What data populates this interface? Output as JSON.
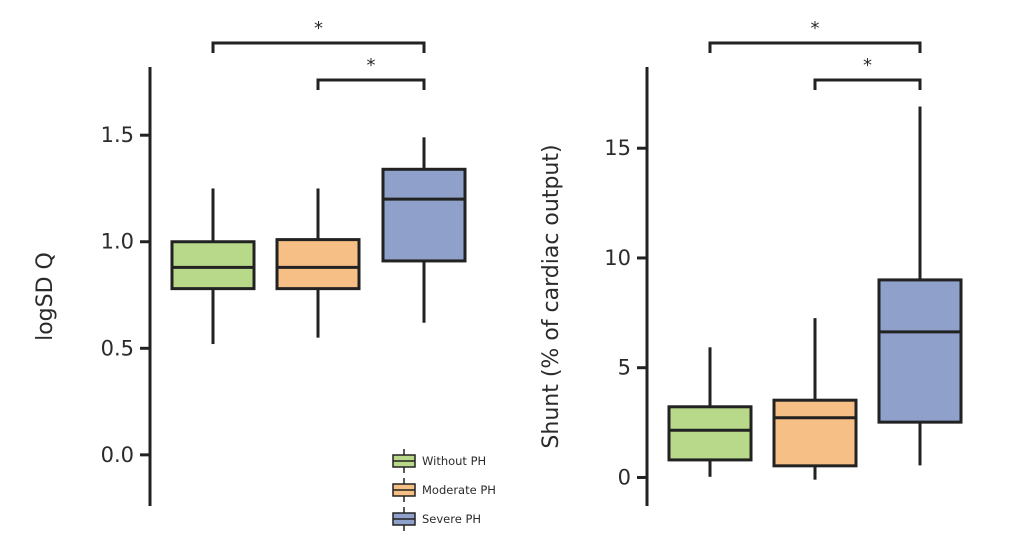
{
  "legend": [
    {
      "label": "Without PH",
      "color": "#b9d98a"
    },
    {
      "label": "Moderate PH",
      "color": "#f6bf85"
    },
    {
      "label": "Severe PH",
      "color": "#8fa1cb"
    }
  ],
  "chart_data": [
    {
      "type": "box",
      "title": "",
      "xlabel": "",
      "ylabel": "logSD Q",
      "ylim": [
        -0.24,
        1.82
      ],
      "yticks": [
        0.0,
        0.5,
        1.0,
        1.5
      ],
      "ytick_labels": [
        "0.0",
        "0.5",
        "1.0",
        "1.5"
      ],
      "categories": [
        "Without PH",
        "Moderate PH",
        "Severe PH"
      ],
      "boxes": [
        {
          "name": "Without PH",
          "whisker_low": 0.52,
          "q1": 0.78,
          "median": 0.88,
          "q3": 1.0,
          "whisker_high": 1.25
        },
        {
          "name": "Moderate PH",
          "whisker_low": 0.55,
          "q1": 0.78,
          "median": 0.88,
          "q3": 1.01,
          "whisker_high": 1.25
        },
        {
          "name": "Severe PH",
          "whisker_low": 0.62,
          "q1": 0.91,
          "median": 1.2,
          "q3": 1.34,
          "whisker_high": 1.49
        }
      ],
      "significance": [
        {
          "from": "Without PH",
          "to": "Severe PH",
          "label": "*"
        },
        {
          "from": "Moderate PH",
          "to": "Severe PH",
          "label": "*"
        }
      ]
    },
    {
      "type": "box",
      "title": "",
      "xlabel": "",
      "ylabel": "Shunt (% of cardiac output)",
      "ylim": [
        -1.3,
        18.7
      ],
      "yticks": [
        0,
        5,
        10,
        15
      ],
      "ytick_labels": [
        "0",
        "5",
        "10",
        "15"
      ],
      "categories": [
        "Without PH",
        "Moderate PH",
        "Severe PH"
      ],
      "boxes": [
        {
          "name": "Without PH",
          "whisker_low": 0.03,
          "q1": 0.8,
          "median": 2.15,
          "q3": 3.22,
          "whisker_high": 5.93
        },
        {
          "name": "Moderate PH",
          "whisker_low": -0.1,
          "q1": 0.53,
          "median": 2.72,
          "q3": 3.52,
          "whisker_high": 7.26
        },
        {
          "name": "Severe PH",
          "whisker_low": 0.55,
          "q1": 2.52,
          "median": 6.63,
          "q3": 9.0,
          "whisker_high": 16.9
        }
      ],
      "significance": [
        {
          "from": "Without PH",
          "to": "Severe PH",
          "label": "*"
        },
        {
          "from": "Moderate PH",
          "to": "Severe PH",
          "label": "*"
        }
      ]
    }
  ]
}
